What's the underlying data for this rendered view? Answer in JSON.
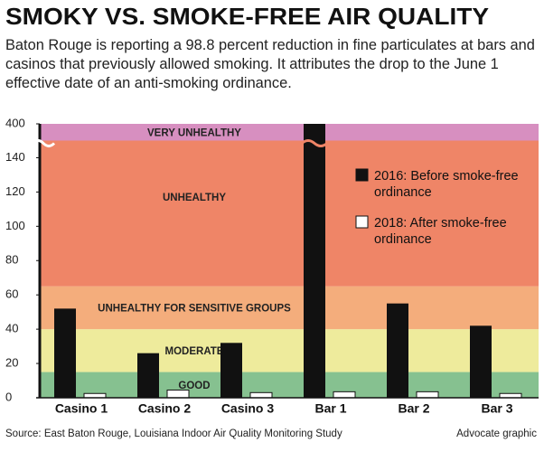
{
  "chart_data": {
    "type": "bar",
    "title": "SMOKY VS. SMOKE-FREE AIR QUALITY",
    "subtitle": "Baton Rouge is reporting a 98.8 percent reduction in fine particulates at bars and casinos that previously allowed smoking. It attributes the drop to the June 1 effective date of an anti-smoking ordinance.",
    "categories": [
      "Casino 1",
      "Casino 2",
      "Casino 3",
      "Bar 1",
      "Bar 2",
      "Bar 3"
    ],
    "series": [
      {
        "name": "2016: Before smoke-free ordinance",
        "color": "#111111",
        "values": [
          52,
          26,
          32,
          400,
          55,
          42
        ]
      },
      {
        "name": "2018: After smoke-free ordinance",
        "color": "#ffffff",
        "values": [
          2.5,
          4.5,
          3,
          3.5,
          3.5,
          2.5
        ]
      }
    ],
    "ylim": [
      0,
      400
    ],
    "yticks": [
      0,
      20,
      40,
      60,
      80,
      100,
      120,
      140,
      400
    ],
    "axis_break": [
      150,
      400
    ],
    "zones": [
      {
        "label": "GOOD",
        "from": 0,
        "to": 15,
        "color": "#86c190"
      },
      {
        "label": "MODERATE",
        "from": 15,
        "to": 40,
        "color": "#eeeb9c"
      },
      {
        "label": "UNHEALTHY FOR SENSITIVE GROUPS",
        "from": 40,
        "to": 65,
        "color": "#f4ad7c"
      },
      {
        "label": "UNHEALTHY",
        "from": 65,
        "to": 150,
        "color": "#ef8567"
      },
      {
        "label": "VERY UNHEALTHY",
        "from": 150,
        "to": 400,
        "color": "#d78fc0"
      }
    ],
    "source": "Source: East Baton Rouge, Louisiana Indoor Air Quality Monitoring Study",
    "credit": "Advocate graphic"
  }
}
